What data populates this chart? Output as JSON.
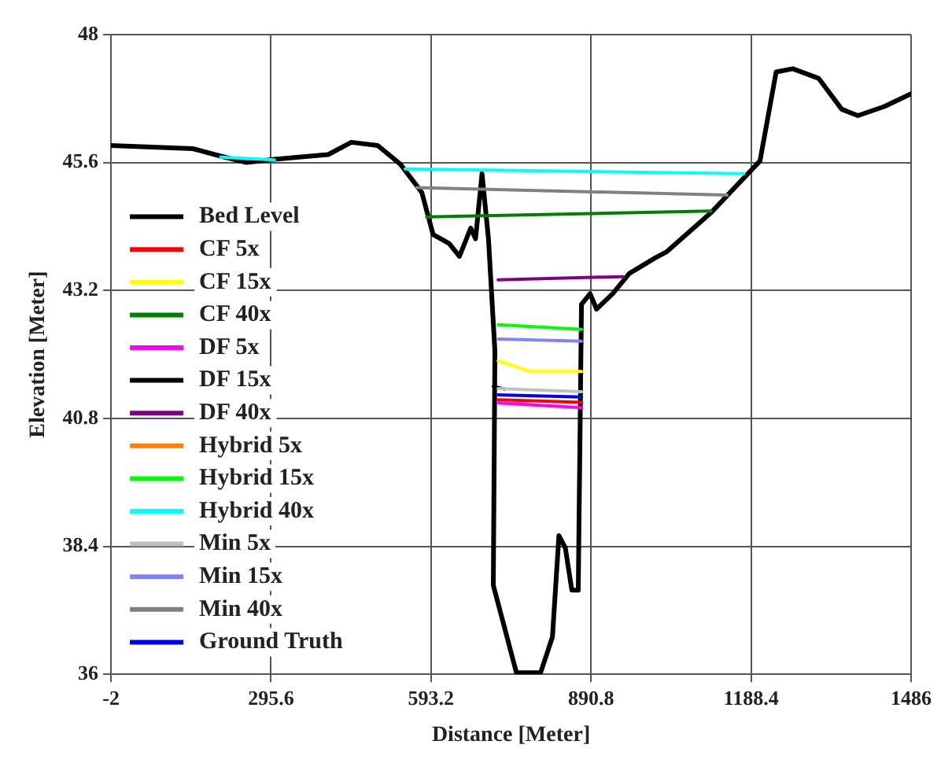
{
  "chart_data": {
    "type": "line",
    "xlabel": "Distance [Meter]",
    "ylabel": "Elevation [Meter]",
    "xlim": [
      -2,
      1486
    ],
    "xticks": [
      -2,
      295.6,
      593.2,
      890.8,
      1188.4,
      1486
    ],
    "ylim": [
      36,
      48
    ],
    "yticks": [
      36,
      38.4,
      40.8,
      43.2,
      45.6,
      48
    ],
    "grid": true,
    "legend": "left",
    "marker": "none",
    "line_style": "solid",
    "series": [
      {
        "name": "Bed Level",
        "color": "#000000",
        "x": [
          -2,
          150,
          202,
          250,
          302,
          402,
          445,
          494,
          536,
          576,
          597,
          627,
          646,
          667,
          676,
          688,
          700,
          712,
          709,
          752,
          797,
          819,
          831,
          843,
          855,
          867,
          873,
          889,
          901,
          931,
          962,
          1010,
          1032,
          1114,
          1205,
          1235,
          1266,
          1314,
          1357,
          1387,
          1436,
          1486
        ],
        "values": [
          45.92,
          45.86,
          45.72,
          45.6,
          45.66,
          45.75,
          45.98,
          45.92,
          45.57,
          45.04,
          44.25,
          44.08,
          43.84,
          44.37,
          44.17,
          45.39,
          44.17,
          42.06,
          37.67,
          36.03,
          36.03,
          36.7,
          38.6,
          38.37,
          37.58,
          37.58,
          42.94,
          43.14,
          42.85,
          43.14,
          43.52,
          43.81,
          43.93,
          44.66,
          45.63,
          47.3,
          47.36,
          47.18,
          46.6,
          46.48,
          46.65,
          46.89
        ]
      },
      {
        "name": "CF 5x",
        "color": "#ff0000",
        "x": [
          718,
          873
        ],
        "values": [
          41.15,
          41.1
        ]
      },
      {
        "name": "CF 15x",
        "color": "#ffff00",
        "x": [
          718,
          779,
          873
        ],
        "values": [
          41.88,
          41.68,
          41.68
        ]
      },
      {
        "name": "CF 40x",
        "color": "#008000",
        "x": [
          585,
          1114
        ],
        "values": [
          44.58,
          44.69
        ]
      },
      {
        "name": "DF 5x",
        "color": "#ff00ff",
        "x": [
          718,
          873
        ],
        "values": [
          41.09,
          41.0
        ]
      },
      {
        "name": "DF 15x",
        "color": "#000000",
        "x": [
          709,
          730
        ],
        "values": [
          41.4,
          41.35
        ]
      },
      {
        "name": "DF 40x",
        "color": "#800080",
        "x": [
          718,
          950
        ],
        "values": [
          43.4,
          43.46
        ]
      },
      {
        "name": "Hybrid 5x",
        "color": "#ff8000"
      },
      {
        "name": "Hybrid 15x",
        "color": "#00ff00",
        "x": [
          718,
          873
        ],
        "values": [
          42.56,
          42.47
        ]
      },
      {
        "name": "Hybrid 40x",
        "color": "#00ffff",
        "x": [
          202,
          302,
          400,
          545,
          1175
        ],
        "values": [
          45.7,
          45.65,
          null,
          45.48,
          45.39
        ]
      },
      {
        "name": "Min 5x",
        "color": "#c0c0c0",
        "x": [
          718,
          873
        ],
        "values": [
          41.36,
          41.3
        ]
      },
      {
        "name": "Min 15x",
        "color": "#8080ff",
        "x": [
          718,
          873
        ],
        "values": [
          42.29,
          42.25
        ]
      },
      {
        "name": "Min 40x",
        "color": "#808080",
        "x": [
          566,
          1144
        ],
        "values": [
          45.13,
          44.99
        ]
      },
      {
        "name": "Ground Truth",
        "color": "#0000ff",
        "x": [
          718,
          873
        ],
        "values": [
          41.24,
          41.2
        ]
      }
    ]
  }
}
